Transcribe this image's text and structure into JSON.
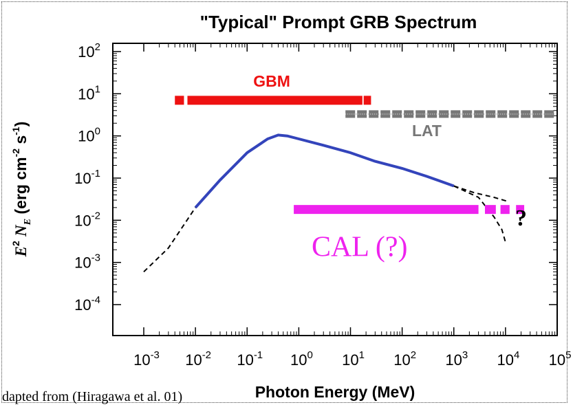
{
  "chart_data": {
    "type": "line",
    "title": "\"Typical\" Prompt GRB Spectrum",
    "xlabel": "Photon Energy (MeV)",
    "ylabel": "E² N_E (erg cm⁻² s⁻¹)",
    "xscale": "log",
    "yscale": "log",
    "xlim": [
      0.001,
      100000
    ],
    "ylim": [
      0.0001,
      100
    ],
    "xticks": [
      "10-3",
      "10-2",
      "10-1",
      "100",
      "101",
      "102",
      "103",
      "104",
      "105"
    ],
    "yticks": [
      "10-4",
      "10-3",
      "10-2",
      "10-1",
      "100",
      "101",
      "102"
    ],
    "grid": false,
    "series": [
      {
        "type": "line",
        "color": "#3344bb",
        "points": [
          [
            0.01,
            0.02
          ],
          [
            0.03,
            0.09
          ],
          [
            0.1,
            0.4
          ],
          [
            0.25,
            0.85
          ],
          [
            0.4,
            1.05
          ],
          [
            0.6,
            1.0
          ],
          [
            1,
            0.85
          ],
          [
            3,
            0.6
          ],
          [
            10,
            0.4
          ],
          [
            30,
            0.25
          ],
          [
            100,
            0.17
          ],
          [
            300,
            0.11
          ],
          [
            1000,
            0.065
          ]
        ]
      },
      {
        "type": "dashed",
        "color": "#000000",
        "points": [
          [
            0.001,
            0.0006
          ],
          [
            0.003,
            0.0022
          ],
          [
            0.01,
            0.02
          ]
        ]
      },
      {
        "type": "dashed",
        "color": "#000000",
        "points": [
          [
            1000,
            0.065
          ],
          [
            2500,
            0.045
          ],
          [
            6000,
            0.035
          ],
          [
            11000,
            0.028
          ]
        ]
      },
      {
        "type": "dashed",
        "color": "#000000",
        "points": [
          [
            1000,
            0.065
          ],
          [
            3000,
            0.035
          ],
          [
            6000,
            0.012
          ],
          [
            8500,
            0.006
          ],
          [
            10000,
            0.003
          ]
        ]
      }
    ],
    "ranges": [
      {
        "label": "GBM",
        "color": "#ee1111",
        "y": 7,
        "segments": [
          [
            0.004,
            0.006
          ],
          [
            0.007,
            17
          ],
          [
            18,
            25
          ]
        ]
      },
      {
        "label": "LAT",
        "color": "#777777",
        "y": 3.3,
        "dotted": true,
        "segments": [
          [
            8,
            100000
          ]
        ]
      },
      {
        "label": "CAL (?)",
        "color": "#ee22ee",
        "y": 0.018,
        "segments": [
          [
            0.8,
            3000
          ],
          [
            4000,
            6500
          ],
          [
            8000,
            12000
          ],
          [
            16000,
            23000
          ]
        ]
      }
    ],
    "annotations": [
      {
        "text": "?"
      }
    ]
  },
  "caption": "dapted from (Hiragawa et al. 01)"
}
